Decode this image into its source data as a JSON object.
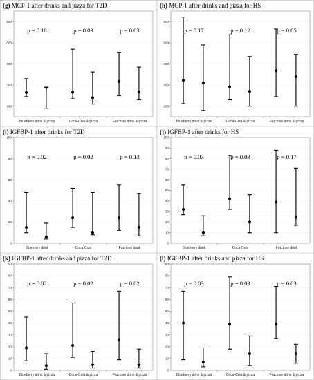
{
  "chart_data": [
    {
      "type": "error-bar",
      "panel_letter": "(g)",
      "title": "MCP-1 after drinks and pizza for T2D",
      "ylim": [
        150,
        650
      ],
      "yticks": [
        200,
        300,
        400,
        500,
        600
      ],
      "categories": [
        "Blueberry drink & pizza",
        "Coca-Cola & pizza",
        "Fructose drink & pizza"
      ],
      "p_values": [
        "p = 0.18",
        "p = 0.03",
        "p = 0.03"
      ],
      "points": [
        {
          "mean": 265,
          "low": 245,
          "high": 330,
          "marker": "circle"
        },
        {
          "mean": 285,
          "low": 190,
          "high": 288,
          "marker": "triangle"
        },
        {
          "mean": 266,
          "low": 235,
          "high": 470,
          "marker": "circle"
        },
        {
          "mean": 240,
          "low": 210,
          "high": 362,
          "marker": "circle"
        },
        {
          "mean": 317,
          "low": 250,
          "high": 455,
          "marker": "circle"
        },
        {
          "mean": 268,
          "low": 230,
          "high": 385,
          "marker": "circle"
        }
      ]
    },
    {
      "type": "error-bar",
      "panel_letter": "(h)",
      "title": "MCP-1 after drinks and pizza for HS",
      "ylim": [
        150,
        650
      ],
      "yticks": [
        200,
        300,
        400,
        500,
        600
      ],
      "categories": [
        "Blueberry drink & pizza",
        "Coca-Cola & pizza",
        "Fructose drink & pizza"
      ],
      "p_values": [
        "p = 0.17",
        "p = 0.12",
        "p = 0.05"
      ],
      "points": [
        {
          "mean": 322,
          "low": 212,
          "high": 622,
          "marker": "circle"
        },
        {
          "mean": 310,
          "low": 180,
          "high": 490,
          "marker": "circle"
        },
        {
          "mean": 292,
          "low": 230,
          "high": 538,
          "marker": "circle"
        },
        {
          "mean": 270,
          "low": 200,
          "high": 435,
          "marker": "circle"
        },
        {
          "mean": 368,
          "low": 245,
          "high": 565,
          "marker": "circle"
        },
        {
          "mean": 340,
          "low": 200,
          "high": 445,
          "marker": "circle"
        }
      ]
    },
    {
      "type": "error-bar",
      "panel_letter": "(i)",
      "title": "IGFBP-1 after drinks for T2D",
      "ylim": [
        0,
        100
      ],
      "yticks": [
        0,
        20,
        40,
        60,
        80,
        100
      ],
      "categories": [
        "Blueberry drink",
        "Coca-Cola",
        "Fructose drink"
      ],
      "p_values": [
        "p = 0.02",
        "p = 0.02",
        "p = 0.13"
      ],
      "points": [
        {
          "mean": 15,
          "low": 10,
          "high": 48,
          "marker": "circle"
        },
        {
          "mean": 6,
          "low": 4,
          "high": 19,
          "marker": "circle"
        },
        {
          "mean": 24,
          "low": 15,
          "high": 52,
          "marker": "circle"
        },
        {
          "mean": 10,
          "low": 8,
          "high": 48,
          "marker": "circle"
        },
        {
          "mean": 24,
          "low": 12,
          "high": 55,
          "marker": "circle"
        },
        {
          "mean": 15,
          "low": 7,
          "high": 47,
          "marker": "circle"
        }
      ]
    },
    {
      "type": "error-bar",
      "panel_letter": "(j)",
      "title": "IGFBP-1 after drinks for HS",
      "ylim": [
        0,
        100
      ],
      "yticks": [
        0,
        10,
        20,
        30,
        40,
        50,
        60,
        70,
        80,
        90,
        100
      ],
      "categories": [
        "Blueberry drink",
        "Coca-Cola",
        "Fructose drink"
      ],
      "p_values": [
        "p = 0.03",
        "p = 0.03",
        "p = 0.17"
      ],
      "points": [
        {
          "mean": 32,
          "low": 27,
          "high": 55,
          "marker": "circle"
        },
        {
          "mean": 10,
          "low": 7,
          "high": 26,
          "marker": "circle"
        },
        {
          "mean": 42,
          "low": 32,
          "high": 83,
          "marker": "circle"
        },
        {
          "mean": 20,
          "low": 10,
          "high": 46,
          "marker": "circle"
        },
        {
          "mean": 39,
          "low": 10,
          "high": 88,
          "marker": "circle"
        },
        {
          "mean": 25,
          "low": 17,
          "high": 71,
          "marker": "circle"
        }
      ]
    },
    {
      "type": "error-bar",
      "panel_letter": "(k)",
      "title": "IGFBP-1 after drinks and pizza for T2D",
      "ylim": [
        0,
        90
      ],
      "yticks": [
        0,
        10,
        20,
        30,
        40,
        50,
        60,
        70,
        80,
        90
      ],
      "categories": [
        "Blueberry drink & pizza",
        "Coca-Cola & pizza",
        "Fructose drink & pizza"
      ],
      "p_values": [
        "p = 0.02",
        "p = 0.02",
        "p = 0.02"
      ],
      "points": [
        {
          "mean": 19,
          "low": 8,
          "high": 45,
          "marker": "circle"
        },
        {
          "mean": 4,
          "low": 1,
          "high": 14,
          "marker": "circle"
        },
        {
          "mean": 21,
          "low": 11,
          "high": 57,
          "marker": "circle"
        },
        {
          "mean": 4,
          "low": 2,
          "high": 16,
          "marker": "triangle"
        },
        {
          "mean": 26,
          "low": 9,
          "high": 67,
          "marker": "circle"
        },
        {
          "mean": 4,
          "low": 2,
          "high": 18,
          "marker": "triangle"
        }
      ]
    },
    {
      "type": "error-bar",
      "panel_letter": "(l)",
      "title": "IGFBP-1 after drinks and pizza for HS",
      "ylim": [
        0,
        90
      ],
      "yticks": [
        0,
        10,
        20,
        30,
        40,
        50,
        60,
        70,
        80,
        90
      ],
      "categories": [
        "Blueberry drink & pizza",
        "Coca-Cola & pizza",
        "Fructose drink & pizza"
      ],
      "p_values": [
        "p = 0.03",
        "p = 0.03",
        "p = 0.03"
      ],
      "points": [
        {
          "mean": 40,
          "low": 9,
          "high": 67,
          "marker": "circle"
        },
        {
          "mean": 7,
          "low": 3,
          "high": 19,
          "marker": "circle"
        },
        {
          "mean": 39,
          "low": 18,
          "high": 79,
          "marker": "circle"
        },
        {
          "mean": 14,
          "low": 4,
          "high": 29,
          "marker": "circle"
        },
        {
          "mean": 39,
          "low": 27,
          "high": 71,
          "marker": "circle"
        },
        {
          "mean": 14,
          "low": 6,
          "high": 22,
          "marker": "circle"
        }
      ]
    }
  ]
}
